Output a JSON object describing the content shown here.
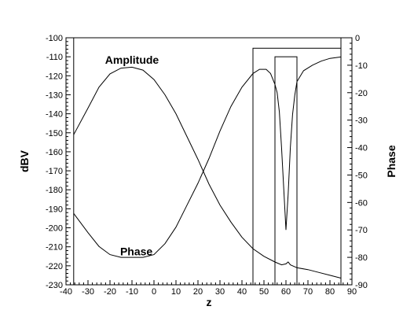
{
  "chart_data": {
    "type": "line",
    "xlabel": "z",
    "ylabel_left": "dBV",
    "ylabel_right": "Phase",
    "xlim": [
      -40,
      90
    ],
    "ylim_left": [
      -230,
      -100
    ],
    "ylim_right": [
      -90,
      0
    ],
    "x_ticks": [
      -40,
      -30,
      -20,
      -10,
      0,
      10,
      20,
      30,
      40,
      50,
      60,
      70,
      80,
      90
    ],
    "y_left_ticks": [
      -230,
      -220,
      -210,
      -200,
      -190,
      -180,
      -170,
      -160,
      -150,
      -140,
      -130,
      -120,
      -110,
      -100
    ],
    "y_right_ticks": [
      -90,
      -80,
      -70,
      -60,
      -50,
      -40,
      -30,
      -20,
      -10,
      0
    ],
    "grid": false,
    "annotations": [
      {
        "text": "Amplitude",
        "x": -10,
        "y_left": -111.5
      },
      {
        "text": "Phase",
        "x": -8,
        "y_left": -212.5
      }
    ],
    "rectangles": [
      {
        "x0": -36.5,
        "x1": 85,
        "y_left0": -230,
        "y_left1": -100
      },
      {
        "x0": 45,
        "x1": 85,
        "y_left0": -230,
        "y_left1": -105.5
      },
      {
        "x0": 55,
        "x1": 65,
        "y_left0": -230,
        "y_left1": -110
      }
    ],
    "series": [
      {
        "name": "Amplitude",
        "axis": "left",
        "points": [
          [
            -36.5,
            -151
          ],
          [
            -30,
            -137
          ],
          [
            -25,
            -126
          ],
          [
            -20,
            -119
          ],
          [
            -15,
            -116
          ],
          [
            -10,
            -115.5
          ],
          [
            -5,
            -117
          ],
          [
            0,
            -122
          ],
          [
            5,
            -130
          ],
          [
            10,
            -140
          ],
          [
            15,
            -152
          ],
          [
            20,
            -164
          ],
          [
            25,
            -177
          ],
          [
            30,
            -188
          ],
          [
            35,
            -197
          ],
          [
            40,
            -205
          ],
          [
            45,
            -211
          ],
          [
            50,
            -215
          ],
          [
            55,
            -218
          ],
          [
            58,
            -219.5
          ],
          [
            60,
            -219
          ],
          [
            61,
            -218
          ],
          [
            62,
            -219.5
          ],
          [
            65,
            -221
          ],
          [
            70,
            -222
          ],
          [
            75,
            -223.5
          ],
          [
            80,
            -225
          ],
          [
            85,
            -226.5
          ]
        ]
      },
      {
        "name": "Phase",
        "axis": "right",
        "points": [
          [
            -36.5,
            -64
          ],
          [
            -30,
            -71
          ],
          [
            -25,
            -76
          ],
          [
            -20,
            -79
          ],
          [
            -15,
            -80
          ],
          [
            -10,
            -80
          ],
          [
            -5,
            -80
          ],
          [
            0,
            -79
          ],
          [
            5,
            -75
          ],
          [
            10,
            -69
          ],
          [
            15,
            -61
          ],
          [
            20,
            -53
          ],
          [
            25,
            -44
          ],
          [
            30,
            -34
          ],
          [
            35,
            -25
          ],
          [
            40,
            -18
          ],
          [
            45,
            -13
          ],
          [
            48,
            -11.5
          ],
          [
            51,
            -11.5
          ],
          [
            53,
            -13
          ],
          [
            55,
            -17
          ],
          [
            56,
            -20
          ],
          [
            57,
            -27
          ],
          [
            58,
            -40
          ],
          [
            59,
            -55
          ],
          [
            60,
            -70
          ],
          [
            61,
            -57
          ],
          [
            62,
            -40
          ],
          [
            63,
            -28
          ],
          [
            64,
            -21
          ],
          [
            65,
            -16
          ],
          [
            68,
            -12
          ],
          [
            72,
            -10
          ],
          [
            76,
            -8.5
          ],
          [
            80,
            -7.5
          ],
          [
            85,
            -7
          ]
        ]
      }
    ]
  }
}
